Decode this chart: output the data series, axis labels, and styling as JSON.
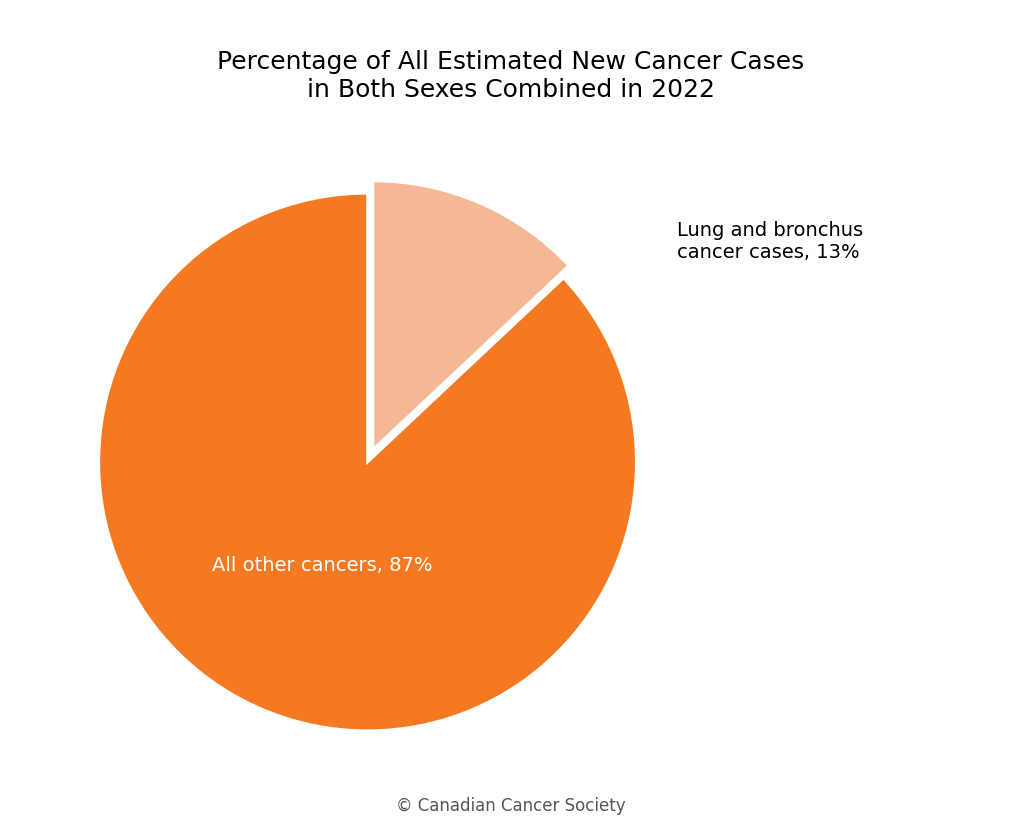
{
  "title": "Percentage of All Estimated New Cancer Cases\nin Both Sexes Combined in 2022",
  "slices": [
    13,
    87
  ],
  "labels_outside": "Lung and bronchus\ncancer cases, 13%",
  "label_inside": "All other cancers, 87%",
  "colors": [
    "#F5B897",
    "#F47920"
  ],
  "explode": [
    0.05,
    0.0
  ],
  "text_color_outside": "#000000",
  "text_color_inside": "#ffffff",
  "startangle": 90,
  "title_fontsize": 18,
  "label_fontsize": 14,
  "copyright": "© Canadian Cancer Society",
  "copyright_fontsize": 12,
  "background_color": "#ffffff"
}
